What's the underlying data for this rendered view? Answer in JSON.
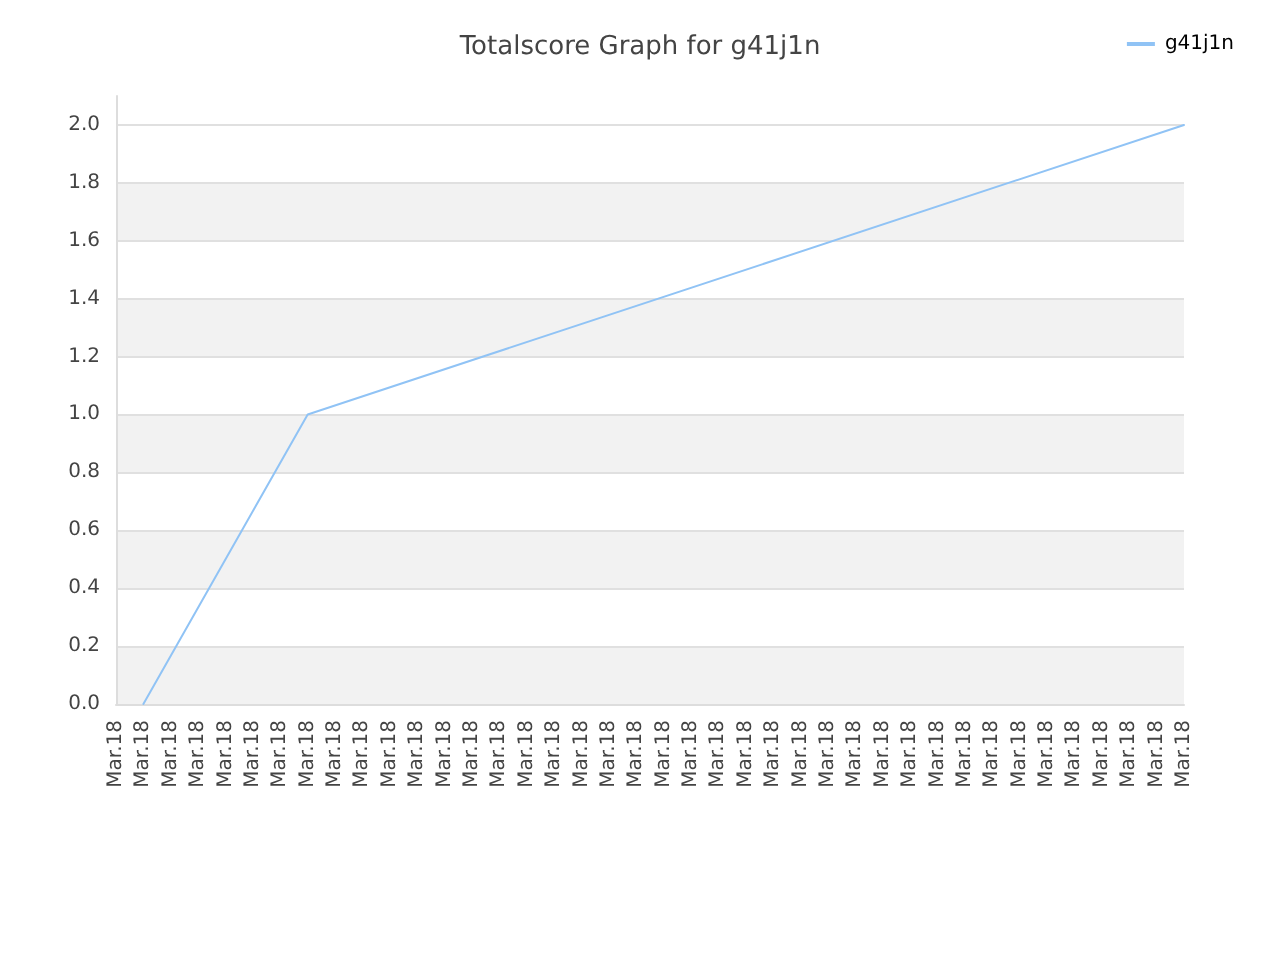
{
  "chart_data": {
    "type": "line",
    "title": "Totalscore Graph for g41j1n",
    "categories": [
      "Mar.18",
      "Mar.18",
      "Mar.18",
      "Mar.18",
      "Mar.18",
      "Mar.18",
      "Mar.18",
      "Mar.18",
      "Mar.18",
      "Mar.18",
      "Mar.18",
      "Mar.18",
      "Mar.18",
      "Mar.18",
      "Mar.18",
      "Mar.18",
      "Mar.18",
      "Mar.18",
      "Mar.18",
      "Mar.18",
      "Mar.18",
      "Mar.18",
      "Mar.18",
      "Mar.18",
      "Mar.18",
      "Mar.18",
      "Mar.18",
      "Mar.18",
      "Mar.18",
      "Mar.18",
      "Mar.18",
      "Mar.18",
      "Mar.18",
      "Mar.18",
      "Mar.18",
      "Mar.18",
      "Mar.18",
      "Mar.18",
      "Mar.18",
      "Mar.18"
    ],
    "series": [
      {
        "name": "g41j1n",
        "color": "#90c3f5",
        "values": [
          null,
          0,
          null,
          null,
          null,
          null,
          null,
          1.0,
          null,
          null,
          null,
          null,
          null,
          null,
          null,
          null,
          null,
          null,
          null,
          null,
          null,
          null,
          null,
          null,
          null,
          null,
          null,
          null,
          null,
          null,
          null,
          null,
          null,
          null,
          null,
          null,
          null,
          null,
          null,
          2.0
        ]
      }
    ],
    "ylim": [
      0,
      2.1
    ],
    "yticks": [
      {
        "value": 0,
        "label": "0.0"
      },
      {
        "value": 0.2,
        "label": "0.2"
      },
      {
        "value": 0.4,
        "label": "0.4"
      },
      {
        "value": 0.6,
        "label": "0.6"
      },
      {
        "value": 0.8,
        "label": "0.8"
      },
      {
        "value": 1,
        "label": "1.0"
      },
      {
        "value": 1.2,
        "label": "1.2"
      },
      {
        "value": 1.4,
        "label": "1.4"
      },
      {
        "value": 1.6,
        "label": "1.6"
      },
      {
        "value": 1.8,
        "label": "1.8"
      },
      {
        "value": 2,
        "label": "2.0"
      }
    ],
    "grid": "y",
    "legend": "top right",
    "marker": "none",
    "line_style": "solid"
  }
}
